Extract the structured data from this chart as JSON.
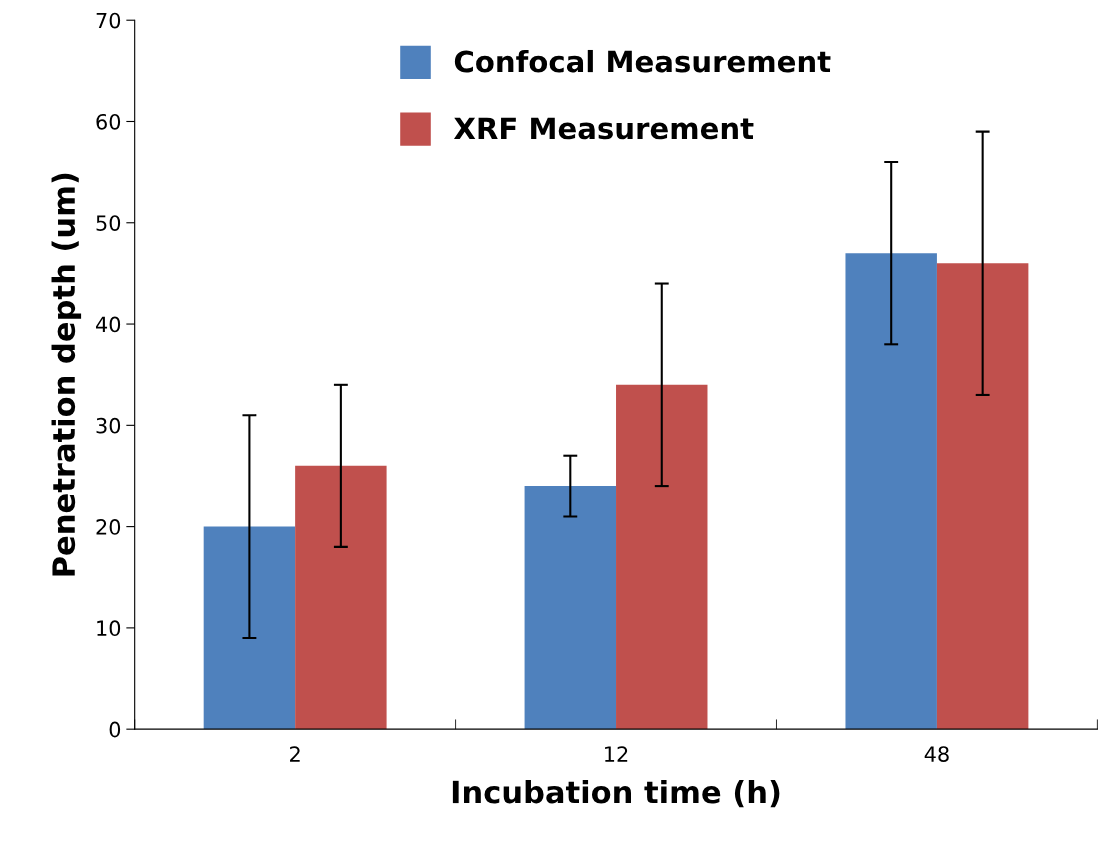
{
  "chart_data": {
    "type": "bar",
    "xlabel": "Incubation time (h)",
    "ylabel": "Penetration depth (um)",
    "categories": [
      "2",
      "12",
      "48"
    ],
    "series": [
      {
        "name": "Confocal Measurement",
        "color": "#4f81bd",
        "values": [
          20,
          24,
          47
        ],
        "errors": [
          11,
          3,
          9
        ]
      },
      {
        "name": "XRF Measurement",
        "color": "#c0504d",
        "values": [
          26,
          34,
          46
        ],
        "errors": [
          8,
          10,
          13
        ]
      }
    ],
    "ylim": [
      0,
      70
    ],
    "yticks": [
      0,
      10,
      20,
      30,
      40,
      50,
      60,
      70
    ],
    "grid": false,
    "legend": "top"
  }
}
